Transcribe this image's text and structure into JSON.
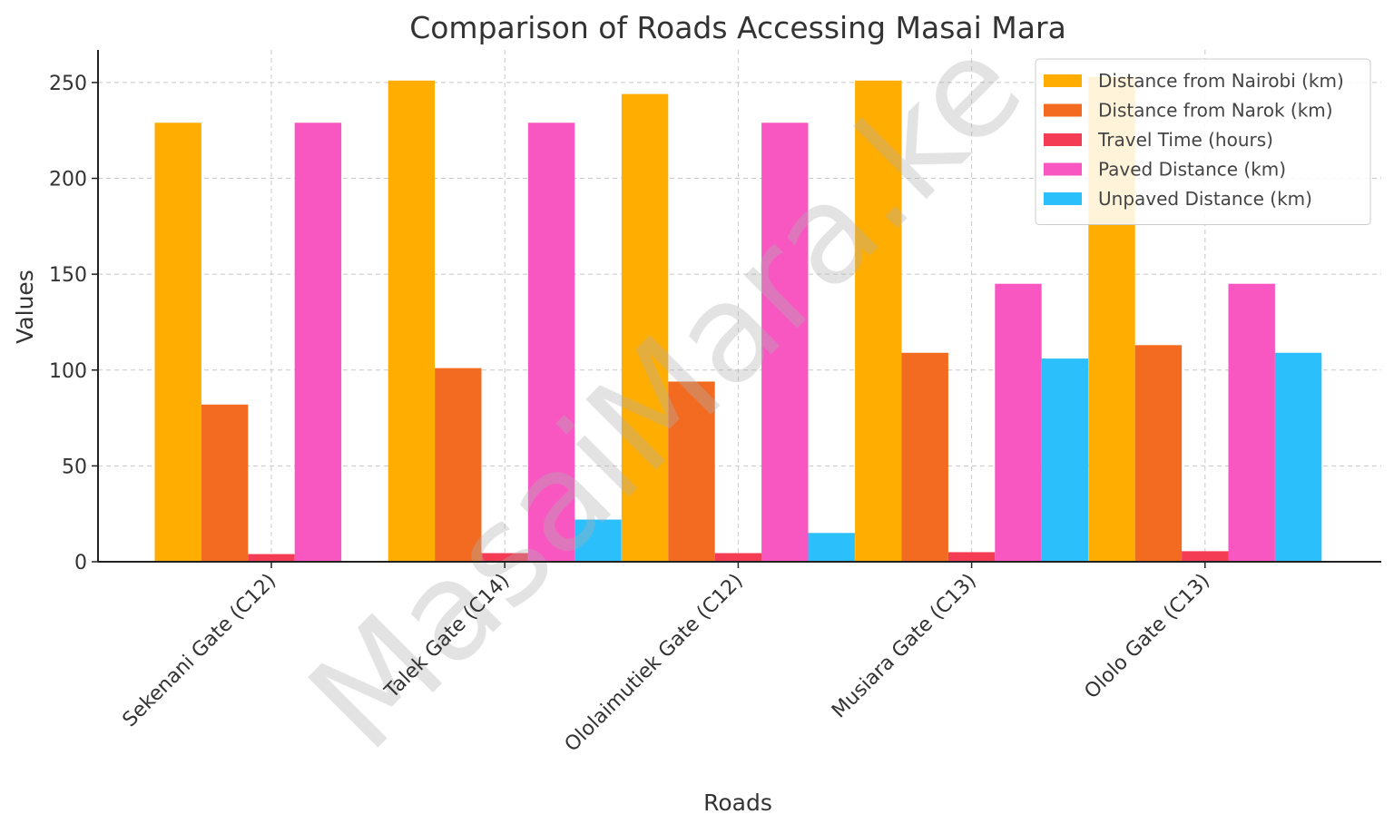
{
  "chart_data": {
    "type": "bar",
    "title": "Comparison of Roads Accessing Masai Mara",
    "xlabel": "Roads",
    "ylabel": "Values",
    "categories": [
      "Sekenani Gate (C12)",
      "Talek Gate (C14)",
      "Ololaimutiek Gate (C12)",
      "Musiara Gate (C13)",
      "Ololo Gate (C13)"
    ],
    "series": [
      {
        "name": "Distance from Nairobi (km)",
        "color": "#FFAE00",
        "values": [
          229,
          251,
          244,
          251,
          253
        ]
      },
      {
        "name": "Distance from Narok (km)",
        "color": "#F26B21",
        "values": [
          82,
          101,
          94,
          109,
          113
        ]
      },
      {
        "name": "Travel Time (hours)",
        "color": "#F43C55",
        "values": [
          4,
          4.5,
          4.5,
          5,
          5.5
        ]
      },
      {
        "name": "Paved Distance (km)",
        "color": "#F857C1",
        "values": [
          229,
          229,
          229,
          145,
          145
        ]
      },
      {
        "name": "Unpaved Distance (km)",
        "color": "#2BBFFB",
        "values": [
          0,
          22,
          15,
          106,
          109
        ]
      }
    ],
    "ylim": [
      0,
      267
    ],
    "yticks": [
      0,
      50,
      100,
      150,
      200,
      250
    ],
    "grid": true,
    "legend_position": "top-right",
    "watermark": "MasaiMara.ke"
  }
}
